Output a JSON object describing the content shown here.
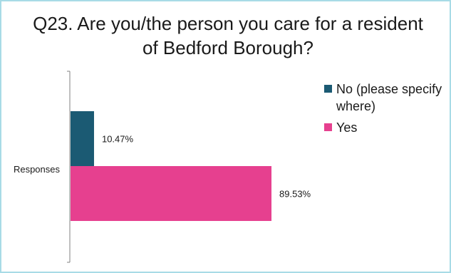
{
  "chart_data": {
    "type": "bar",
    "orientation": "horizontal",
    "title": "Q23. Are you/the person you care for a resident of Bedford Borough?",
    "categories": [
      "Responses"
    ],
    "series": [
      {
        "name": "No (please specify where)",
        "values": [
          10.47
        ],
        "label": "10.47%",
        "color": "#1b5a73"
      },
      {
        "name": "Yes",
        "values": [
          89.53
        ],
        "label": "89.53%",
        "color": "#e6408f"
      }
    ],
    "xlim": [
      0,
      100
    ],
    "legend_position": "right",
    "grid": false
  }
}
